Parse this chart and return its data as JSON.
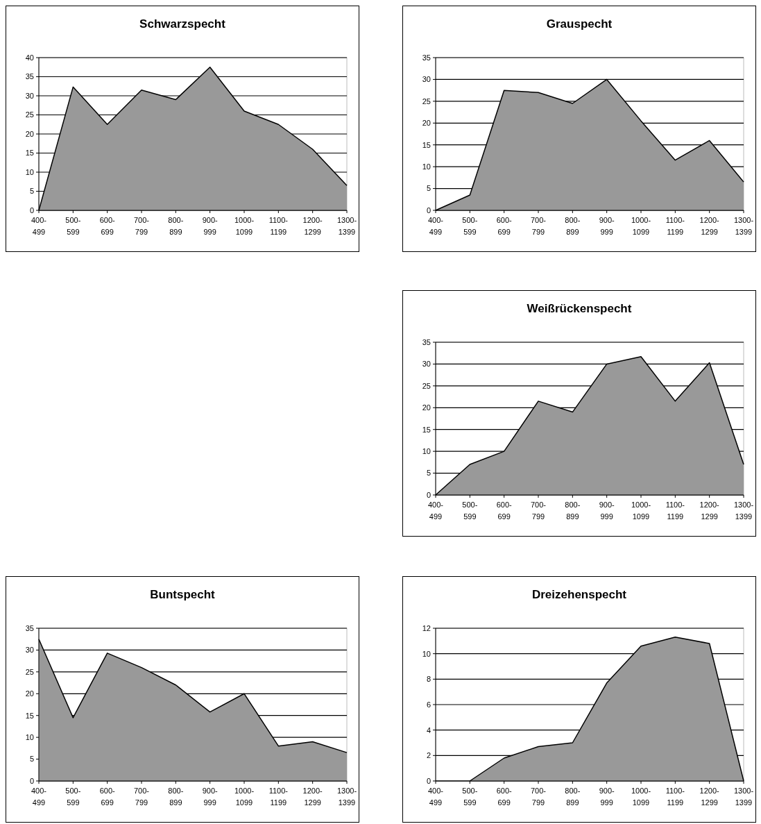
{
  "chart_data": [
    {
      "type": "area",
      "title": "Schwarzspecht",
      "categories": [
        "400-499",
        "500-599",
        "600-699",
        "700-799",
        "800-899",
        "900-999",
        "1000-1099",
        "1100-1199",
        "1200-1299",
        "1300-1399"
      ],
      "series": [
        {
          "color": "#999999",
          "values": [
            0,
            32.3,
            22.5,
            31.5,
            29,
            37.5,
            26,
            22.5,
            16,
            6.5
          ]
        }
      ],
      "ylim": [
        0,
        40
      ],
      "yticks": [
        0,
        5,
        10,
        15,
        20,
        25,
        30,
        35,
        40
      ],
      "grid": "y"
    },
    {
      "type": "area",
      "title": "Grauspecht",
      "categories": [
        "400-499",
        "500-599",
        "600-699",
        "700-799",
        "800-899",
        "900-999",
        "1000-1099",
        "1100-1199",
        "1200-1299",
        "1300-1399"
      ],
      "series": [
        {
          "color": "#999999",
          "values": [
            0,
            3.5,
            27.5,
            27,
            24.5,
            30,
            20.5,
            11.5,
            16,
            6.5
          ]
        }
      ],
      "ylim": [
        0,
        35
      ],
      "yticks": [
        0,
        5,
        10,
        15,
        20,
        25,
        30,
        35
      ],
      "grid": "y"
    },
    {
      "type": "area",
      "title": "Weißrückenspecht",
      "categories": [
        "400-499",
        "500-599",
        "600-699",
        "700-799",
        "800-899",
        "900-999",
        "1000-1099",
        "1100-1199",
        "1200-1299",
        "1300-1399"
      ],
      "series": [
        {
          "color": "#999999",
          "values": [
            0,
            7,
            10,
            21.5,
            19,
            30,
            31.7,
            21.5,
            30.3,
            7
          ]
        }
      ],
      "ylim": [
        0,
        35
      ],
      "yticks": [
        0,
        5,
        10,
        15,
        20,
        25,
        30,
        35
      ],
      "grid": "y"
    },
    {
      "type": "area",
      "title": "Buntspecht",
      "categories": [
        "400-499",
        "500-599",
        "600-699",
        "700-799",
        "800-899",
        "900-999",
        "1000-1099",
        "1100-1199",
        "1200-1299",
        "1300-1399"
      ],
      "series": [
        {
          "color": "#999999",
          "values": [
            32.5,
            14.5,
            29.3,
            26,
            22,
            15.8,
            20,
            8,
            9,
            6.5
          ]
        }
      ],
      "ylim": [
        0,
        35
      ],
      "yticks": [
        0,
        5,
        10,
        15,
        20,
        25,
        30,
        35
      ],
      "grid": "y"
    },
    {
      "type": "area",
      "title": "Dreizehenspecht",
      "categories": [
        "400-499",
        "500-599",
        "600-699",
        "700-799",
        "800-899",
        "900-999",
        "1000-1099",
        "1100-1199",
        "1200-1299",
        "1300-1399"
      ],
      "series": [
        {
          "color": "#999999",
          "values": [
            null,
            0,
            1.8,
            2.7,
            3,
            7.7,
            10.6,
            11.3,
            10.8,
            0
          ]
        }
      ],
      "ylim": [
        0,
        12
      ],
      "yticks": [
        0,
        2,
        4,
        6,
        8,
        10,
        12
      ],
      "grid": "y"
    }
  ]
}
